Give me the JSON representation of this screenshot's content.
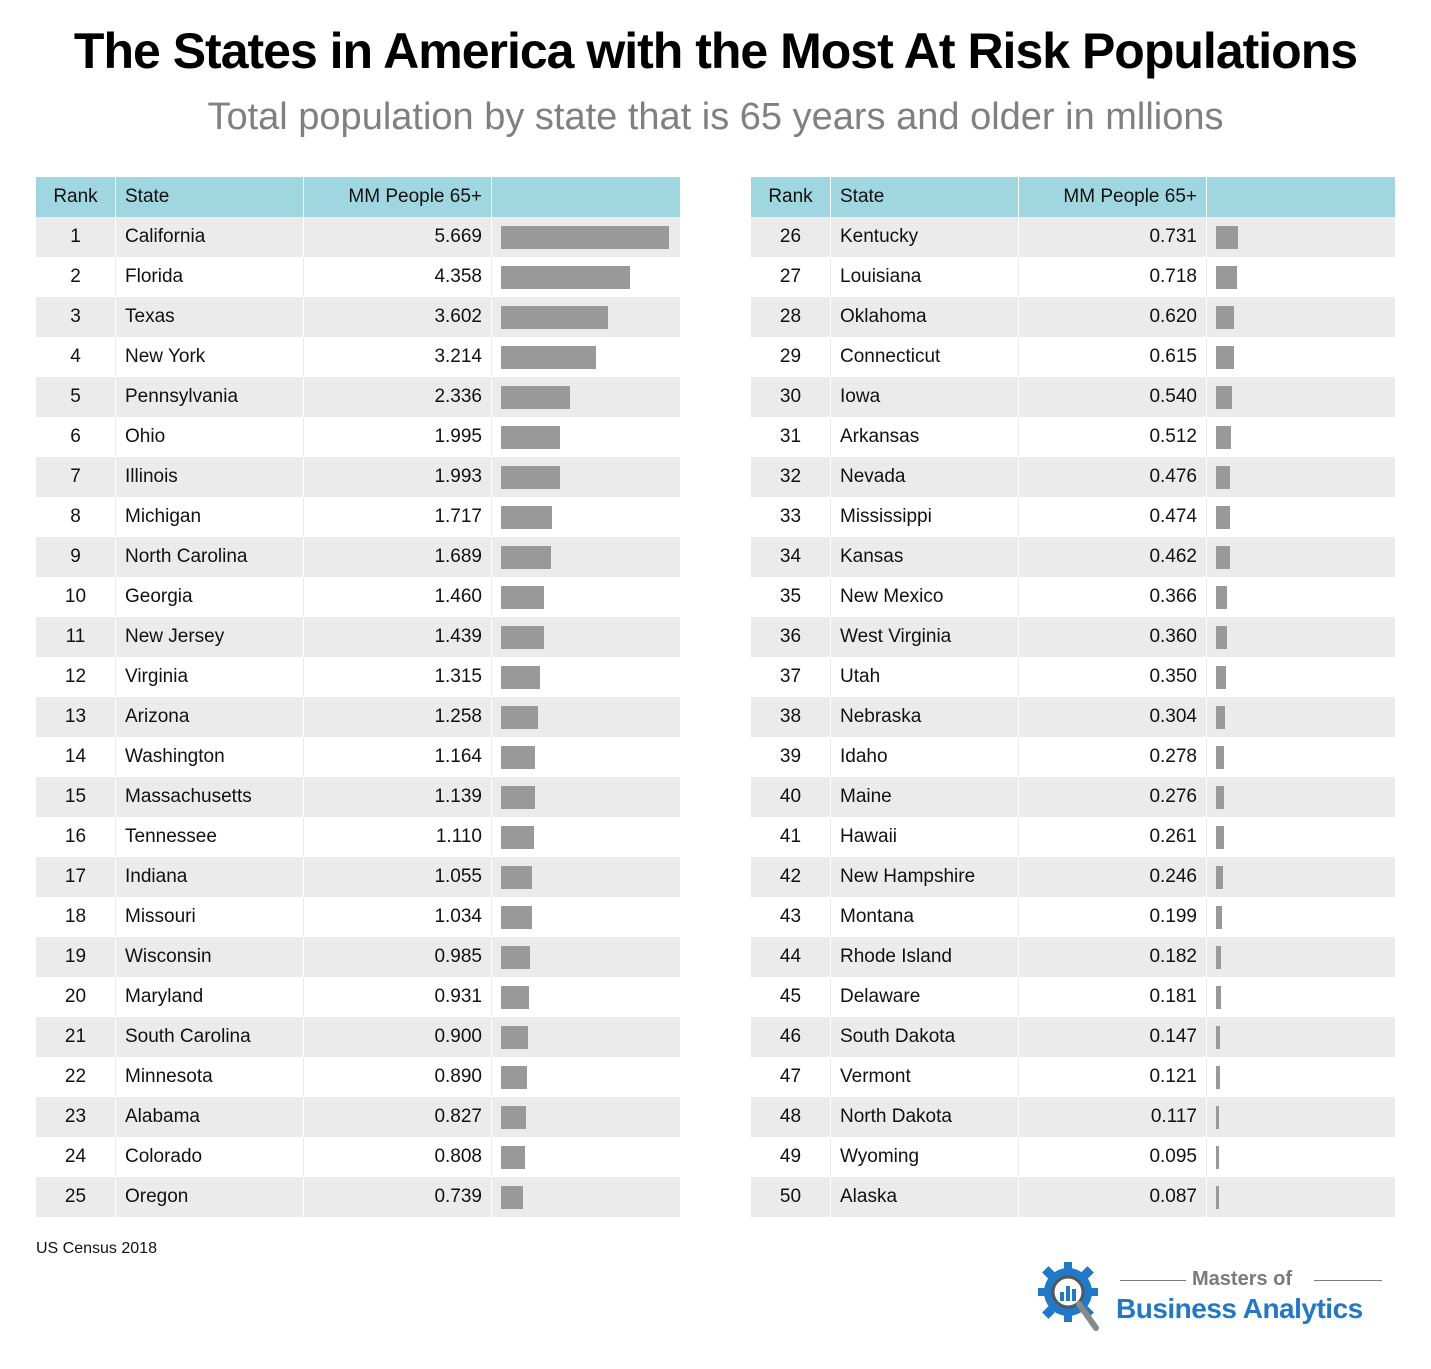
{
  "title": "The States in America with the Most At Risk Populations",
  "subtitle": "Total population by state that is 65 years and older in mllions",
  "headers": {
    "rank": "Rank",
    "state": "State",
    "value": "MM People 65+"
  },
  "source": "US Census 2018",
  "logo": {
    "line1": "Masters of",
    "line2": "Business Analytics",
    "icon": "gear-magnifier-chart-icon",
    "color": "#1f78c8"
  },
  "colors": {
    "header_bg": "#9fd6e0",
    "bar": "#999999",
    "stripe": "#ebebeb"
  },
  "chart_data": {
    "type": "table",
    "title": "The States in America with the Most At Risk Populations",
    "subtitle": "Total population by state that is 65 years and older in mllions",
    "columns": [
      "Rank",
      "State",
      "MM People 65+"
    ],
    "max_value": 5.669,
    "rows": [
      {
        "rank": "1",
        "state": "California",
        "value": "5.669"
      },
      {
        "rank": "2",
        "state": "Florida",
        "value": "4.358"
      },
      {
        "rank": "3",
        "state": "Texas",
        "value": "3.602"
      },
      {
        "rank": "4",
        "state": "New York",
        "value": "3.214"
      },
      {
        "rank": "5",
        "state": "Pennsylvania",
        "value": "2.336"
      },
      {
        "rank": "6",
        "state": "Ohio",
        "value": "1.995"
      },
      {
        "rank": "7",
        "state": "Illinois",
        "value": "1.993"
      },
      {
        "rank": "8",
        "state": "Michigan",
        "value": "1.717"
      },
      {
        "rank": "9",
        "state": "North Carolina",
        "value": "1.689"
      },
      {
        "rank": "10",
        "state": "Georgia",
        "value": "1.460"
      },
      {
        "rank": "11",
        "state": "New Jersey",
        "value": "1.439"
      },
      {
        "rank": "12",
        "state": "Virginia",
        "value": "1.315"
      },
      {
        "rank": "13",
        "state": "Arizona",
        "value": "1.258"
      },
      {
        "rank": "14",
        "state": "Washington",
        "value": "1.164"
      },
      {
        "rank": "15",
        "state": "Massachusetts",
        "value": "1.139"
      },
      {
        "rank": "16",
        "state": "Tennessee",
        "value": "1.110"
      },
      {
        "rank": "17",
        "state": "Indiana",
        "value": "1.055"
      },
      {
        "rank": "18",
        "state": "Missouri",
        "value": "1.034"
      },
      {
        "rank": "19",
        "state": "Wisconsin",
        "value": "0.985"
      },
      {
        "rank": "20",
        "state": "Maryland",
        "value": "0.931"
      },
      {
        "rank": "21",
        "state": "South Carolina",
        "value": "0.900"
      },
      {
        "rank": "22",
        "state": "Minnesota",
        "value": "0.890"
      },
      {
        "rank": "23",
        "state": "Alabama",
        "value": "0.827"
      },
      {
        "rank": "24",
        "state": "Colorado",
        "value": "0.808"
      },
      {
        "rank": "25",
        "state": "Oregon",
        "value": "0.739"
      },
      {
        "rank": "26",
        "state": "Kentucky",
        "value": "0.731"
      },
      {
        "rank": "27",
        "state": "Louisiana",
        "value": "0.718"
      },
      {
        "rank": "28",
        "state": "Oklahoma",
        "value": "0.620"
      },
      {
        "rank": "29",
        "state": "Connecticut",
        "value": "0.615"
      },
      {
        "rank": "30",
        "state": "Iowa",
        "value": "0.540"
      },
      {
        "rank": "31",
        "state": "Arkansas",
        "value": "0.512"
      },
      {
        "rank": "32",
        "state": "Nevada",
        "value": "0.476"
      },
      {
        "rank": "33",
        "state": "Mississippi",
        "value": "0.474"
      },
      {
        "rank": "34",
        "state": "Kansas",
        "value": "0.462"
      },
      {
        "rank": "35",
        "state": "New Mexico",
        "value": "0.366"
      },
      {
        "rank": "36",
        "state": "West Virginia",
        "value": "0.360"
      },
      {
        "rank": "37",
        "state": "Utah",
        "value": "0.350"
      },
      {
        "rank": "38",
        "state": "Nebraska",
        "value": "0.304"
      },
      {
        "rank": "39",
        "state": "Idaho",
        "value": "0.278"
      },
      {
        "rank": "40",
        "state": "Maine",
        "value": "0.276"
      },
      {
        "rank": "41",
        "state": "Hawaii",
        "value": "0.261"
      },
      {
        "rank": "42",
        "state": "New Hampshire",
        "value": "0.246"
      },
      {
        "rank": "43",
        "state": "Montana",
        "value": "0.199"
      },
      {
        "rank": "44",
        "state": "Rhode Island",
        "value": "0.182"
      },
      {
        "rank": "45",
        "state": "Delaware",
        "value": "0.181"
      },
      {
        "rank": "46",
        "state": "South Dakota",
        "value": "0.147"
      },
      {
        "rank": "47",
        "state": "Vermont",
        "value": "0.121"
      },
      {
        "rank": "48",
        "state": "North Dakota",
        "value": "0.117"
      },
      {
        "rank": "49",
        "state": "Wyoming",
        "value": "0.095"
      },
      {
        "rank": "50",
        "state": "Alaska",
        "value": "0.087"
      }
    ]
  }
}
